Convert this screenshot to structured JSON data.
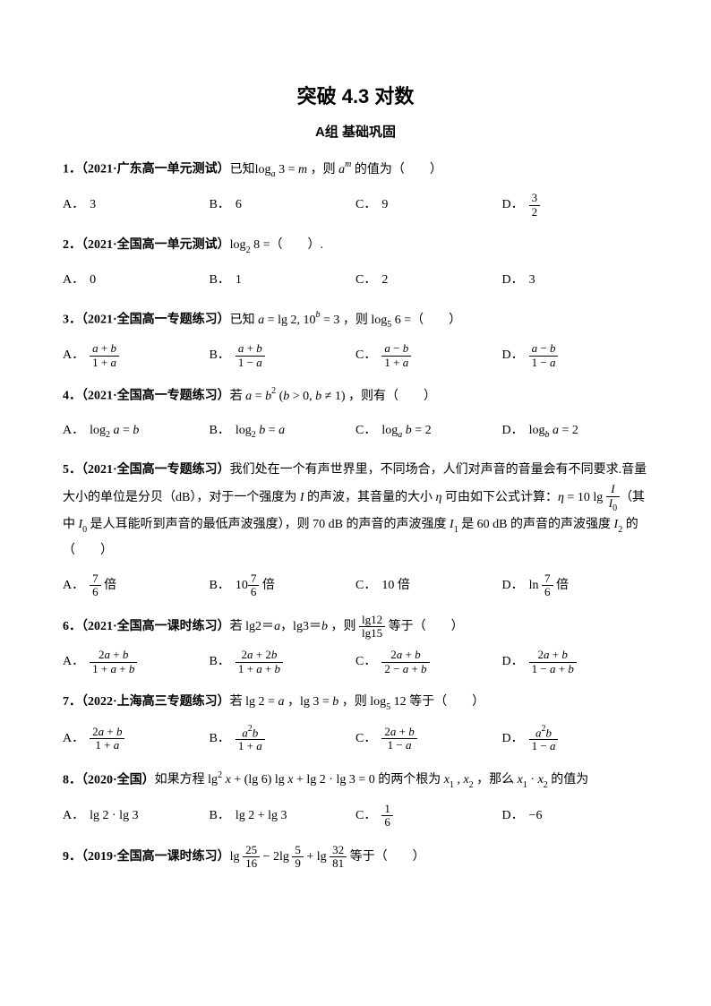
{
  "title": "突破 4.3 对数",
  "subtitle": "A组 基础巩固",
  "labels": {
    "A": "A．",
    "B": "B．",
    "C": "C．",
    "D": "D．"
  },
  "q1": {
    "num": "1．",
    "source": "（2021·广东高一单元测试）",
    "stem": "已知log<sub><span class=\"math\">a</span></sub> 3 = <span class=\"math\">m</span> ，则 <span class=\"math\">a<sup>m</sup></span> 的值为（　　）",
    "A": "3",
    "B": "6",
    "C": "9",
    "D": "<span class=\"frac\"><span class=\"num\">3</span><span class=\"den\">2</span></span>"
  },
  "q2": {
    "num": "2．",
    "source": "（2021·全国高一单元测试）",
    "stem": "log<sub>2</sub> 8 =（　　）.",
    "A": "0",
    "B": "1",
    "C": "2",
    "D": "3"
  },
  "q3": {
    "num": "3．",
    "source": "（2021·全国高一专题练习）",
    "stem": "已知 <span class=\"math\">a</span> = lg 2, 10<sup><span class=\"math\">b</span></sup> = 3 ，则 log<sub>5</sub> 6 =（　　）",
    "A": "<span class=\"frac\"><span class=\"num\"><span class=\"math\">a</span> + <span class=\"math\">b</span></span><span class=\"den\">1 + <span class=\"math\">a</span></span></span>",
    "B": "<span class=\"frac\"><span class=\"num\"><span class=\"math\">a</span> + <span class=\"math\">b</span></span><span class=\"den\">1 − <span class=\"math\">a</span></span></span>",
    "C": "<span class=\"frac\"><span class=\"num\"><span class=\"math\">a</span> − <span class=\"math\">b</span></span><span class=\"den\">1 + <span class=\"math\">a</span></span></span>",
    "D": "<span class=\"frac\"><span class=\"num\"><span class=\"math\">a</span> − <span class=\"math\">b</span></span><span class=\"den\">1 − <span class=\"math\">a</span></span></span>"
  },
  "q4": {
    "num": "4．",
    "source": "（2021·全国高一专题练习）",
    "stem": "若 <span class=\"math\">a</span> = <span class=\"math\">b</span><sup>2</sup> (<span class=\"math\">b</span> &gt; 0, <span class=\"math\">b</span> ≠ 1) ，则有（　　）",
    "A": "log<sub>2</sub> <span class=\"math\">a</span> = <span class=\"math\">b</span>",
    "B": "log<sub>2</sub> <span class=\"math\">b</span> = <span class=\"math\">a</span>",
    "C": "log<sub><span class=\"math\">a</span></sub> <span class=\"math\">b</span> = 2",
    "D": "log<sub><span class=\"math\">b</span></sub> <span class=\"math\">a</span> = 2"
  },
  "q5": {
    "num": "5．",
    "source": "（2021·全国高一专题练习）",
    "stem": "我们处在一个有声世界里，不同场合，人们对声音的音量会有不同要求.音量大小的单位是分贝（dB），对于一个强度为 <span class=\"math\">I</span> 的声波，其音量的大小 <span class=\"math\">η</span> 可由如下公式计算：<span class=\"math\">η</span> = 10 lg <span class=\"frac\"><span class=\"num\"><span class=\"math\">I</span></span><span class=\"den\"><span class=\"math\">I</span><sub>0</sub></span></span>（其中 <span class=\"math\">I</span><sub>0</sub> 是人耳能听到声音的最低声波强度），则 70 dB 的声音的声波强度 <span class=\"math\">I</span><sub>1</sub> 是 60 dB 的声音的声波强度 <span class=\"math\">I</span><sub>2</sub> 的（　　）",
    "A": "<span class=\"frac\"><span class=\"num\">7</span><span class=\"den\">6</span></span> 倍",
    "B": "10<span class=\"frac\"><span class=\"num\">7</span><span class=\"den\">6</span></span> 倍",
    "C": "10 倍",
    "D": "ln <span class=\"frac\"><span class=\"num\">7</span><span class=\"den\">6</span></span> 倍"
  },
  "q6": {
    "num": "6．",
    "source": "（2021·全国高一课时练习）",
    "stem": "若 lg2＝<span class=\"math\">a</span>，lg3＝<span class=\"math\">b</span> ，则 <span class=\"frac\"><span class=\"num\">lg12</span><span class=\"den\">lg15</span></span> 等于（　　）",
    "A": "<span class=\"frac\"><span class=\"num\">2<span class=\"math\">a</span> + <span class=\"math\">b</span></span><span class=\"den\">1 + <span class=\"math\">a</span> + <span class=\"math\">b</span></span></span>",
    "B": "<span class=\"frac\"><span class=\"num\">2<span class=\"math\">a</span> + 2<span class=\"math\">b</span></span><span class=\"den\">1 + <span class=\"math\">a</span> + <span class=\"math\">b</span></span></span>",
    "C": "<span class=\"frac\"><span class=\"num\">2<span class=\"math\">a</span> + <span class=\"math\">b</span></span><span class=\"den\">2 − <span class=\"math\">a</span> + <span class=\"math\">b</span></span></span>",
    "D": "<span class=\"frac\"><span class=\"num\">2<span class=\"math\">a</span> + <span class=\"math\">b</span></span><span class=\"den\">1 − <span class=\"math\">a</span> + <span class=\"math\">b</span></span></span>"
  },
  "q7": {
    "num": "7．",
    "source": "（2022·上海高三专题练习）",
    "stem": "若 lg 2 = <span class=\"math\">a</span> ，lg 3 = <span class=\"math\">b</span> ，则 log<sub>5</sub> 12 等于（　　）",
    "A": "<span class=\"frac\"><span class=\"num\">2<span class=\"math\">a</span> + <span class=\"math\">b</span></span><span class=\"den\">1 + <span class=\"math\">a</span></span></span>",
    "B": "<span class=\"frac\"><span class=\"num\"><span class=\"math\">a</span><sup>2</sup><span class=\"math\">b</span></span><span class=\"den\">1 + <span class=\"math\">a</span></span></span>",
    "C": "<span class=\"frac\"><span class=\"num\">2<span class=\"math\">a</span> + <span class=\"math\">b</span></span><span class=\"den\">1 − <span class=\"math\">a</span></span></span>",
    "D": "<span class=\"frac\"><span class=\"num\"><span class=\"math\">a</span><sup>2</sup><span class=\"math\">b</span></span><span class=\"den\">1 − <span class=\"math\">a</span></span></span>"
  },
  "q8": {
    "num": "8．",
    "source": "（2020·全国）",
    "stem": "如果方程 lg<sup>2</sup> <span class=\"math\">x</span> + (lg 6) lg <span class=\"math\">x</span> + lg 2 · lg 3 = 0 的两个根为 <span class=\"math\">x</span><sub>1</sub> , <span class=\"math\">x</span><sub>2</sub> ，那么 <span class=\"math\">x</span><sub>1</sub> · <span class=\"math\">x</span><sub>2</sub> 的值为",
    "A": "lg 2 · lg 3",
    "B": "lg 2 + lg 3",
    "C": "<span class=\"frac\"><span class=\"num\">1</span><span class=\"den\">6</span></span>",
    "D": "−6"
  },
  "q9": {
    "num": "9．",
    "source": "（2019·全国高一课时练习）",
    "stem": "lg <span class=\"frac\"><span class=\"num\">25</span><span class=\"den\">16</span></span> − 2lg <span class=\"frac\"><span class=\"num\">5</span><span class=\"den\">9</span></span> + lg <span class=\"frac\"><span class=\"num\">32</span><span class=\"den\">81</span></span> 等于（　　）"
  },
  "colors": {
    "text": "#000000",
    "background": "#ffffff"
  },
  "typography": {
    "title_fontsize": 22,
    "subtitle_fontsize": 15,
    "body_fontsize": 14
  }
}
